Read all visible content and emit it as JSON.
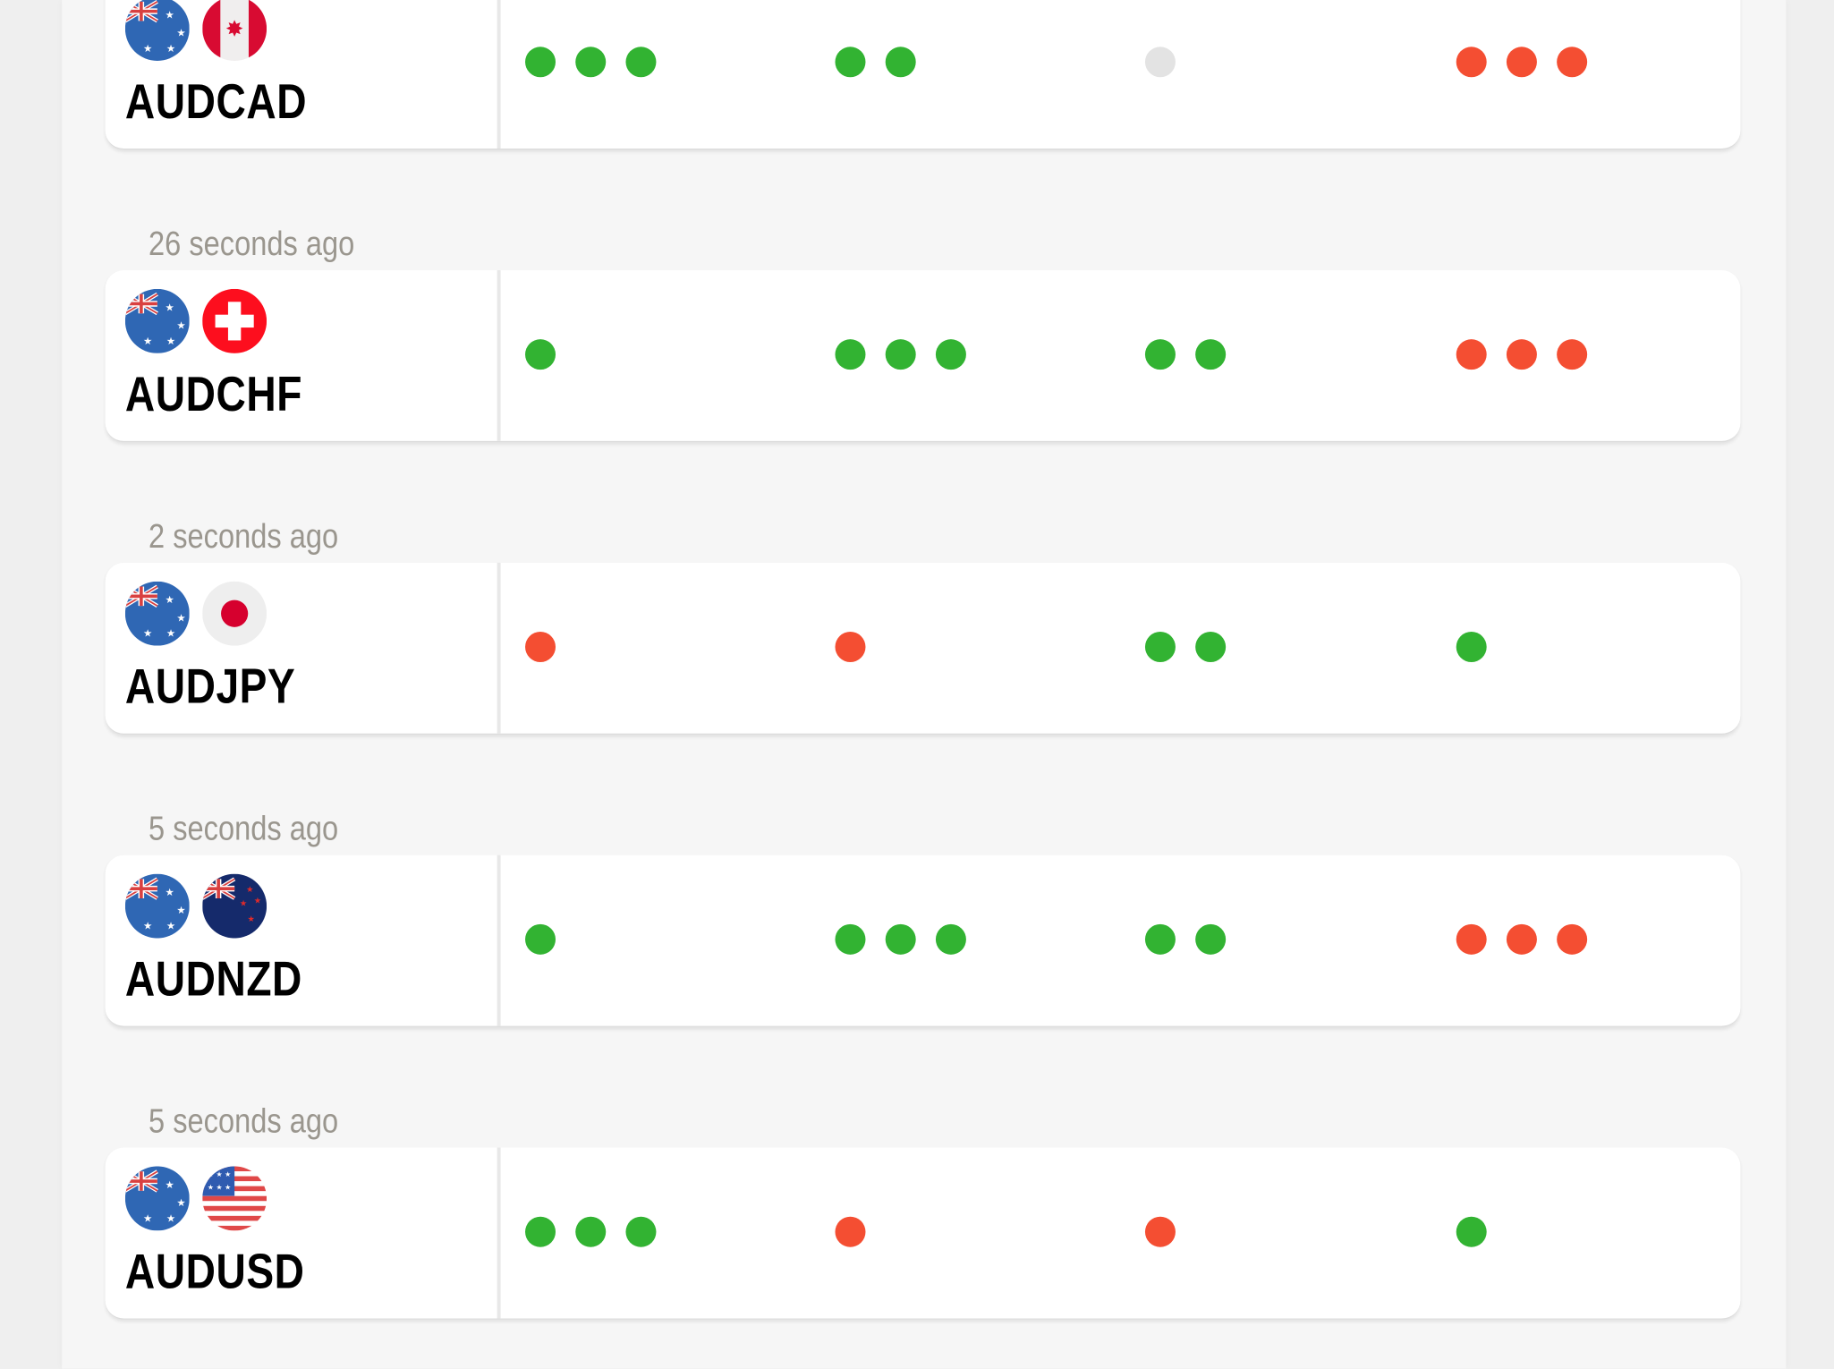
{
  "colors": {
    "bullish": "#32b332",
    "bearish": "#f44e32",
    "neutral": "#e3e3e3",
    "timestamp": "#9a968e"
  },
  "rows": [
    {
      "pair": "AUDCAD",
      "timestamp": "",
      "flags": [
        "australia-flag-icon",
        "canada-flag-icon"
      ],
      "groups": [
        {
          "signal": "bullish",
          "count": 3
        },
        {
          "signal": "bullish",
          "count": 2
        },
        {
          "signal": "neutral",
          "count": 1
        },
        {
          "signal": "bearish",
          "count": 3
        }
      ]
    },
    {
      "pair": "AUDCHF",
      "timestamp": "26 seconds ago",
      "flags": [
        "australia-flag-icon",
        "switzerland-flag-icon"
      ],
      "groups": [
        {
          "signal": "bullish",
          "count": 1
        },
        {
          "signal": "bullish",
          "count": 3
        },
        {
          "signal": "bullish",
          "count": 2
        },
        {
          "signal": "bearish",
          "count": 3
        }
      ]
    },
    {
      "pair": "AUDJPY",
      "timestamp": "2 seconds ago",
      "flags": [
        "australia-flag-icon",
        "japan-flag-icon"
      ],
      "groups": [
        {
          "signal": "bearish",
          "count": 1
        },
        {
          "signal": "bearish",
          "count": 1
        },
        {
          "signal": "bullish",
          "count": 2
        },
        {
          "signal": "bullish",
          "count": 1
        }
      ]
    },
    {
      "pair": "AUDNZD",
      "timestamp": "5 seconds ago",
      "flags": [
        "australia-flag-icon",
        "new-zealand-flag-icon"
      ],
      "groups": [
        {
          "signal": "bullish",
          "count": 1
        },
        {
          "signal": "bullish",
          "count": 3
        },
        {
          "signal": "bullish",
          "count": 2
        },
        {
          "signal": "bearish",
          "count": 3
        }
      ]
    },
    {
      "pair": "AUDUSD",
      "timestamp": "5 seconds ago",
      "flags": [
        "australia-flag-icon",
        "usa-flag-icon"
      ],
      "groups": [
        {
          "signal": "bullish",
          "count": 3
        },
        {
          "signal": "bearish",
          "count": 1
        },
        {
          "signal": "bearish",
          "count": 1
        },
        {
          "signal": "bullish",
          "count": 1
        }
      ]
    }
  ]
}
